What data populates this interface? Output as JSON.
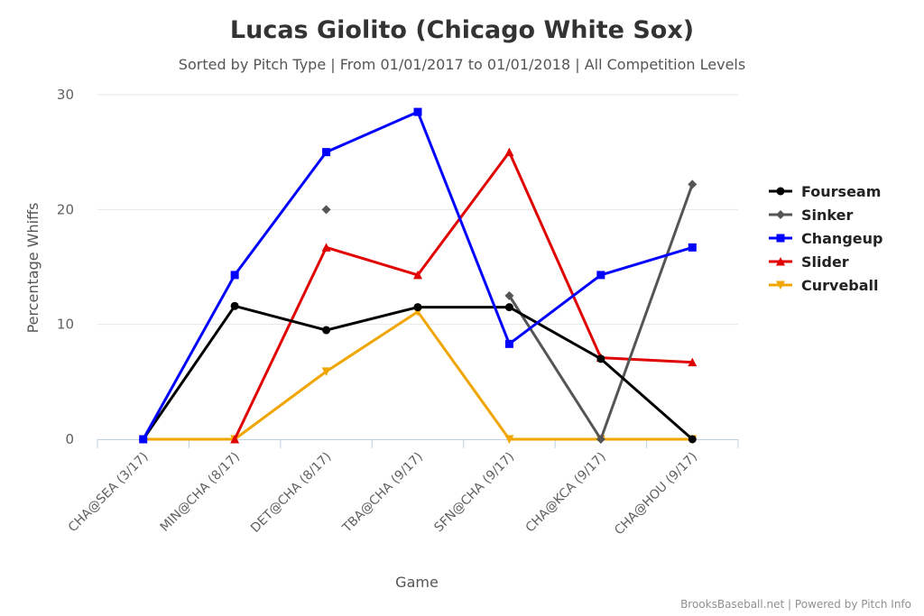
{
  "chart_data": {
    "type": "line",
    "title": "Lucas Giolito (Chicago White Sox)",
    "subtitle": "Sorted by Pitch Type | From 01/01/2017 to 01/01/2018 | All Competition Levels",
    "xlabel": "Game",
    "ylabel": "Percentage Whiffs",
    "categories": [
      "CHA@SEA (3/17)",
      "MIN@CHA (8/17)",
      "DET@CHA (8/17)",
      "TBA@CHA (9/17)",
      "SFN@CHA (9/17)",
      "CHA@KCA (9/17)",
      "CHA@HOU (9/17)"
    ],
    "ylim": [
      0,
      30
    ],
    "yticks": [
      0,
      10,
      20,
      30
    ],
    "grid": true,
    "legend_position": "right",
    "series": [
      {
        "name": "Fourseam",
        "color": "#000000",
        "marker": "circle",
        "values": [
          0,
          11.6,
          9.5,
          11.5,
          11.5,
          7.0,
          0
        ]
      },
      {
        "name": "Sinker",
        "color": "#555555",
        "marker": "diamond",
        "values": [
          null,
          null,
          20.0,
          null,
          12.5,
          0,
          22.2
        ]
      },
      {
        "name": "Changeup",
        "color": "#0000ff",
        "marker": "square",
        "values": [
          0,
          14.3,
          25.0,
          28.5,
          8.3,
          14.3,
          16.7
        ]
      },
      {
        "name": "Slider",
        "color": "#e00000",
        "marker": "triangle",
        "values": [
          null,
          0,
          16.7,
          14.3,
          25.0,
          7.1,
          6.7
        ]
      },
      {
        "name": "Curveball",
        "color": "#f0a500",
        "marker": "triangle-down",
        "values": [
          0,
          0,
          5.9,
          11.1,
          0,
          0,
          0
        ]
      }
    ],
    "credit": "BrooksBaseball.net | Powered by Pitch Info"
  }
}
